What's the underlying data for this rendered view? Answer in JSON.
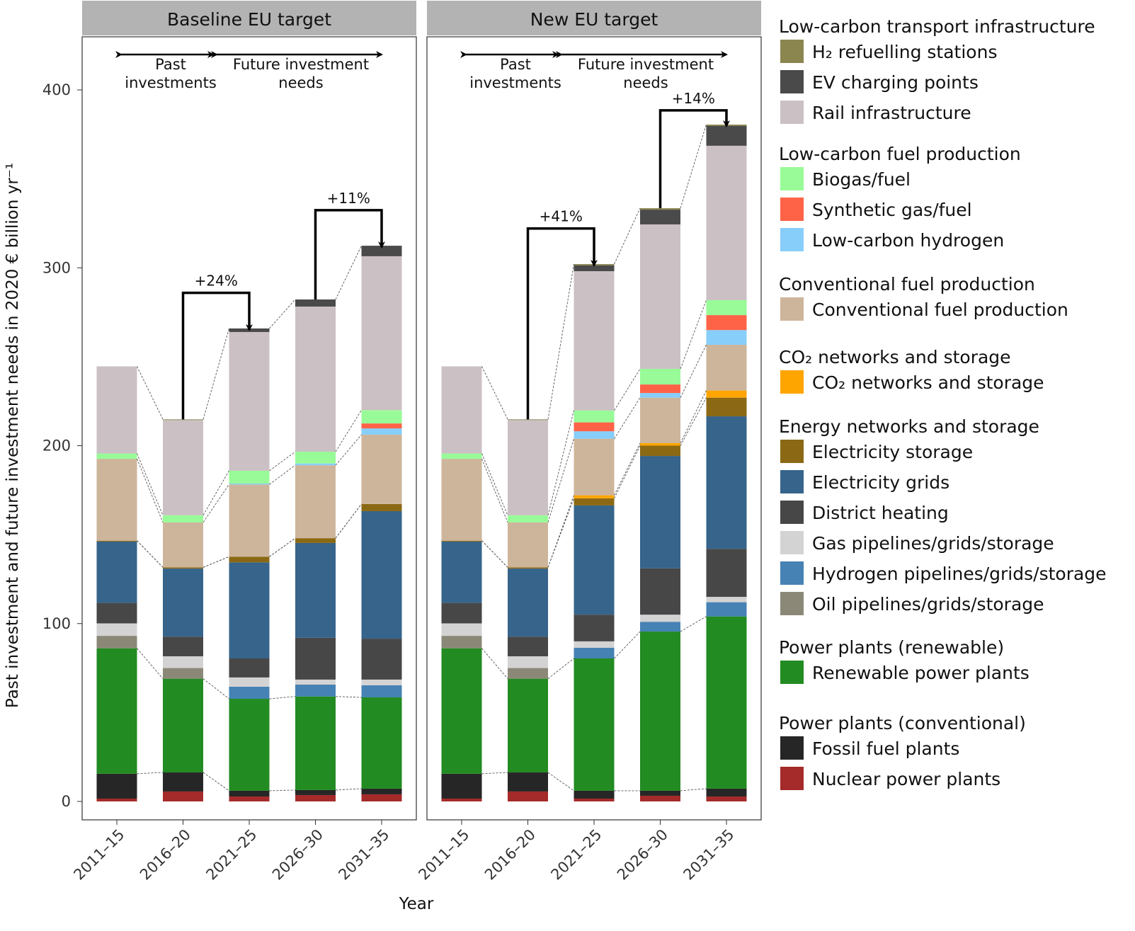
{
  "chart_data": {
    "type": "bar",
    "stacked": true,
    "ylabel": "Past investment and future investment needs in 2020 € billion yr⁻¹",
    "xlabel": "Year",
    "ylim": [
      0,
      410
    ],
    "yticks": [
      "0",
      "100",
      "200",
      "300",
      "400"
    ],
    "categories": [
      "2011–15",
      "2016–20",
      "2021–25",
      "2026–30",
      "2031–35"
    ],
    "annotations": {
      "past": "Past investments",
      "future": "Future investment needs",
      "past_l1": "Past",
      "past_l2": "investments",
      "future_l1": "Future investment",
      "future_l2": "needs"
    },
    "series_order": [
      "nuclear",
      "fossil",
      "renewable",
      "oil_pipe",
      "h2_pipe",
      "gas_pipe",
      "district_heating",
      "elec_grids",
      "elec_storage",
      "co2",
      "conv_fuel",
      "lc_hydrogen",
      "synthetic",
      "biogas",
      "rail",
      "ev",
      "h2_stations"
    ],
    "colors": {
      "h2_stations": "#8b8650",
      "ev": "#4a4a4a",
      "rail": "#cbc0c4",
      "biogas": "#98fb98",
      "synthetic": "#ff6347",
      "lc_hydrogen": "#87cefa",
      "conv_fuel": "#cdb59b",
      "co2": "#ffa500",
      "elec_storage": "#8b6914",
      "elec_grids": "#36648b",
      "district_heating": "#474747",
      "gas_pipe": "#d3d3d3",
      "h2_pipe": "#4682b4",
      "oil_pipe": "#8b8878",
      "renewable": "#228b22",
      "fossil": "#262626",
      "nuclear": "#a52a2a"
    },
    "panels": [
      {
        "title": "Baseline EU target",
        "growth": [
          {
            "from": 1,
            "to": 2,
            "label": "+24%"
          },
          {
            "from": 3,
            "to": 4,
            "label": "+11%"
          }
        ],
        "values": {
          "nuclear": [
            1.6,
            5.6,
            2.8,
            3.6,
            4
          ],
          "fossil": [
            14,
            10.7,
            3.2,
            2.8,
            3.2
          ],
          "renewable": [
            70.5,
            52.7,
            51.7,
            52.6,
            51.3
          ],
          "oil_pipe": [
            7,
            6,
            0,
            0,
            0
          ],
          "h2_pipe": [
            0,
            0,
            6.8,
            6.7,
            6.8
          ],
          "gas_pipe": [
            7,
            6.6,
            5.2,
            2.8,
            3.2
          ],
          "district_heating": [
            11.5,
            11,
            10.7,
            23.5,
            23
          ],
          "elec_grids": [
            34.5,
            38.3,
            54,
            53.3,
            71.7
          ],
          "elec_storage": [
            0.5,
            0.7,
            3.2,
            2.7,
            4
          ],
          "co2": [
            0,
            0,
            0,
            0,
            0
          ],
          "conv_fuel": [
            46,
            25.3,
            40.6,
            41,
            39
          ],
          "lc_hydrogen": [
            0,
            0,
            0.5,
            1,
            3.5
          ],
          "synthetic": [
            0,
            0,
            0,
            0,
            2.8
          ],
          "biogas": [
            3,
            4,
            7.2,
            6.6,
            7.5
          ],
          "rail": [
            49,
            53.5,
            78,
            81.6,
            86.5
          ],
          "ev": [
            0,
            0,
            2,
            4,
            5.9
          ],
          "h2_stations": [
            0,
            0.4,
            0,
            0,
            0
          ]
        }
      },
      {
        "title": "New EU target",
        "growth": [
          {
            "from": 1,
            "to": 2,
            "label": "+41%"
          },
          {
            "from": 3,
            "to": 4,
            "label": "+14%"
          }
        ],
        "values": {
          "nuclear": [
            1.6,
            5.6,
            1.6,
            3.2,
            2.8
          ],
          "fossil": [
            14,
            10.7,
            4.4,
            2.8,
            4.4
          ],
          "renewable": [
            70.5,
            52.7,
            74.4,
            89.5,
            96.8
          ],
          "oil_pipe": [
            7,
            6,
            0,
            0,
            0
          ],
          "h2_pipe": [
            0,
            0,
            6,
            5.5,
            8
          ],
          "gas_pipe": [
            7,
            6.6,
            3.6,
            4,
            3
          ],
          "district_heating": [
            11.5,
            11,
            15,
            26,
            27
          ],
          "elec_grids": [
            34.5,
            38.3,
            61.4,
            63.2,
            74.5
          ],
          "elec_storage": [
            0.5,
            0.7,
            4,
            5.8,
            10.5
          ],
          "co2": [
            0,
            0,
            1.7,
            1.4,
            4
          ],
          "conv_fuel": [
            46,
            25.3,
            31.8,
            25.6,
            25.7
          ],
          "lc_hydrogen": [
            0,
            0,
            4.2,
            2.6,
            8.3
          ],
          "synthetic": [
            0,
            0,
            5,
            4.8,
            8.4
          ],
          "biogas": [
            3,
            4,
            6.7,
            8.8,
            8.4
          ],
          "rail": [
            49,
            53.5,
            78.3,
            81.2,
            86.8
          ],
          "ev": [
            0,
            0,
            3.3,
            8.3,
            11.1
          ],
          "h2_stations": [
            0,
            0.4,
            0.7,
            0.8,
            0.8
          ]
        }
      }
    ],
    "legend": [
      {
        "title": "Low-carbon transport infrastructure",
        "items": [
          {
            "key": "h2_stations",
            "label": "H₂ refuelling stations"
          },
          {
            "key": "ev",
            "label": "EV charging points"
          },
          {
            "key": "rail",
            "label": "Rail infrastructure"
          }
        ]
      },
      {
        "title": "Low-carbon fuel production",
        "items": [
          {
            "key": "biogas",
            "label": "Biogas/fuel"
          },
          {
            "key": "synthetic",
            "label": "Synthetic gas/fuel"
          },
          {
            "key": "lc_hydrogen",
            "label": "Low-carbon hydrogen"
          }
        ]
      },
      {
        "title": "Conventional fuel production",
        "items": [
          {
            "key": "conv_fuel",
            "label": "Conventional fuel production"
          }
        ]
      },
      {
        "title": "CO₂ networks and storage",
        "items": [
          {
            "key": "co2",
            "label": "CO₂ networks and storage"
          }
        ]
      },
      {
        "title": "Energy networks and storage",
        "items": [
          {
            "key": "elec_storage",
            "label": "Electricity storage"
          },
          {
            "key": "elec_grids",
            "label": "Electricity grids"
          },
          {
            "key": "district_heating",
            "label": "District heating"
          },
          {
            "key": "gas_pipe",
            "label": "Gas pipelines/grids/storage"
          },
          {
            "key": "h2_pipe",
            "label": "Hydrogen pipelines/grids/storage"
          },
          {
            "key": "oil_pipe",
            "label": "Oil pipelines/grids/storage"
          }
        ]
      },
      {
        "title": "Power plants (renewable)",
        "items": [
          {
            "key": "renewable",
            "label": "Renewable power plants"
          }
        ]
      },
      {
        "title": "Power plants (conventional)",
        "items": [
          {
            "key": "fossil",
            "label": "Fossil fuel plants"
          },
          {
            "key": "nuclear",
            "label": "Nuclear power plants"
          }
        ]
      }
    ]
  }
}
